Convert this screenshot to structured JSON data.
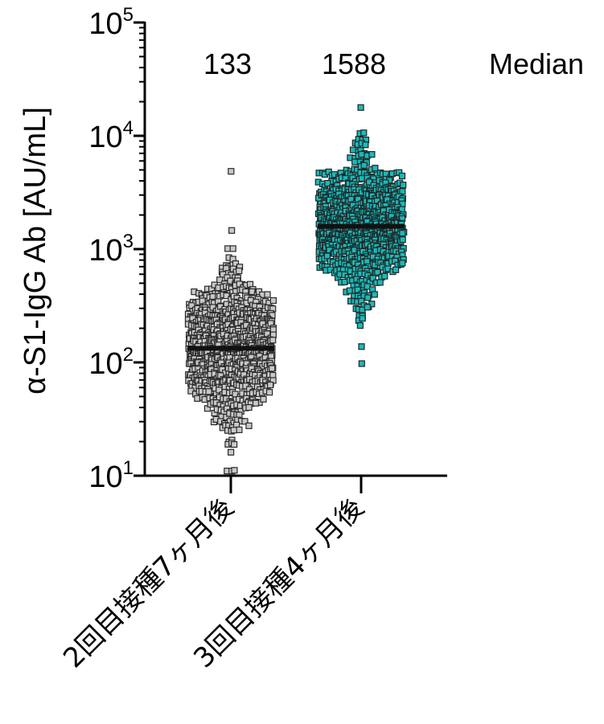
{
  "chart_data": {
    "type": "scatter",
    "subtype": "dot-plot",
    "ylabel": "α-S1-IgG Ab [AU/mL]",
    "yscale": "log",
    "ylim": [
      10,
      100000
    ],
    "yticks": [
      {
        "base": "10",
        "exp": "1"
      },
      {
        "base": "10",
        "exp": "2"
      },
      {
        "base": "10",
        "exp": "3"
      },
      {
        "base": "10",
        "exp": "4"
      },
      {
        "base": "10",
        "exp": "5"
      }
    ],
    "categories": [
      "2回目接種7ヶ月後",
      "3回目接種4ヶ月後"
    ],
    "median_header": "Median",
    "series": [
      {
        "category": "2回目接種7ヶ月後",
        "median": 133,
        "median_label": "133",
        "color": "#c8c8c8",
        "edge": "#2a2a2a",
        "n_points": 900,
        "min": 11,
        "max": 4800,
        "spread_log10": 0.32
      },
      {
        "category": "3回目接種4ヶ月後",
        "median": 1588,
        "median_label": "1588",
        "color": "#1fb7b7",
        "edge": "#1a2a2a",
        "n_points": 900,
        "min": 98,
        "max": 18000,
        "spread_log10": 0.28
      }
    ]
  }
}
